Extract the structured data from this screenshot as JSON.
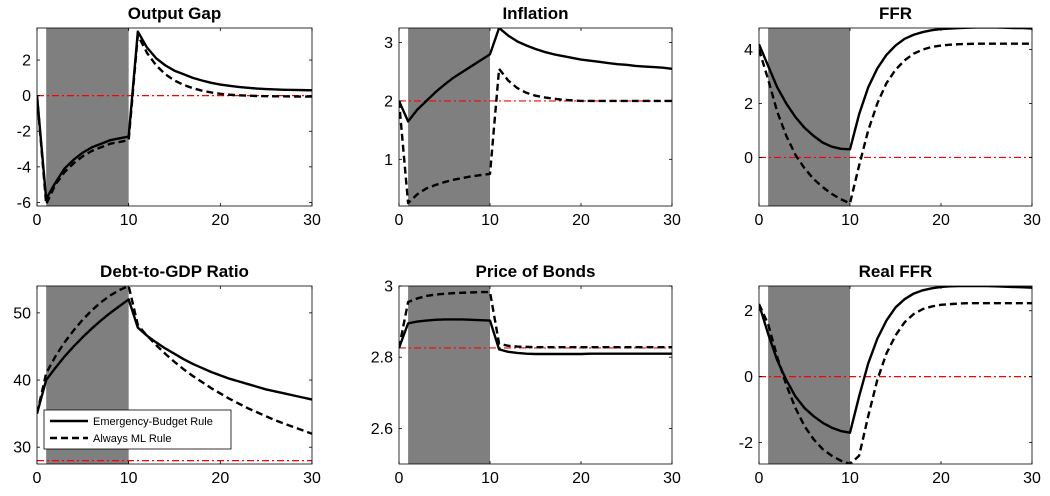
{
  "figure": {
    "colors": {
      "recession_shade": "#7f7f7f",
      "reference_line": "#ff0000",
      "series": "#000000",
      "background": "#ffffff"
    },
    "legend": {
      "panel": "Debt-to-GDP Ratio",
      "entries": [
        {
          "label": "Emergency-Budget Rule",
          "style": "solid"
        },
        {
          "label": "Always ML Rule",
          "style": "dashed"
        }
      ]
    }
  },
  "chart_data": [
    {
      "type": "line",
      "title": "Output Gap",
      "xlim": [
        0,
        30
      ],
      "ylim": [
        -6.2,
        3.8
      ],
      "xticks": [
        0,
        10,
        20,
        30
      ],
      "yticks": [
        -6,
        -4,
        -2,
        0,
        2
      ],
      "shade": [
        1,
        10
      ],
      "reference_line": {
        "y": 0,
        "style": "dash-dot"
      },
      "series": [
        {
          "name": "Emergency-Budget Rule",
          "style": "solid",
          "x": [
            0,
            1,
            2,
            3,
            4,
            5,
            6,
            7,
            8,
            9,
            10,
            11,
            12,
            13,
            14,
            15,
            16,
            17,
            18,
            19,
            20,
            21,
            22,
            23,
            24,
            25,
            26,
            27,
            28,
            29,
            30
          ],
          "y": [
            0,
            -5.8,
            -4.9,
            -4.1,
            -3.6,
            -3.2,
            -2.9,
            -2.7,
            -2.5,
            -2.4,
            -2.3,
            3.6,
            2.7,
            2.1,
            1.7,
            1.4,
            1.2,
            1.0,
            0.85,
            0.72,
            0.62,
            0.55,
            0.49,
            0.44,
            0.4,
            0.37,
            0.35,
            0.33,
            0.32,
            0.31,
            0.3
          ]
        },
        {
          "name": "Always ML Rule",
          "style": "dashed",
          "x": [
            0,
            1,
            2,
            3,
            4,
            5,
            6,
            7,
            8,
            9,
            10,
            11,
            12,
            13,
            14,
            15,
            16,
            17,
            18,
            19,
            20,
            21,
            22,
            23,
            24,
            25,
            26,
            27,
            28,
            29,
            30
          ],
          "y": [
            0,
            -6.1,
            -5.0,
            -4.3,
            -3.8,
            -3.4,
            -3.1,
            -2.9,
            -2.7,
            -2.6,
            -2.5,
            3.4,
            2.4,
            1.7,
            1.2,
            0.85,
            0.6,
            0.42,
            0.28,
            0.18,
            0.1,
            0.05,
            0.02,
            0.0,
            -0.02,
            -0.03,
            -0.04,
            -0.04,
            -0.05,
            -0.05,
            -0.05
          ]
        }
      ]
    },
    {
      "type": "line",
      "title": "Inflation",
      "xlim": [
        0,
        30
      ],
      "ylim": [
        0.2,
        3.25
      ],
      "xticks": [
        0,
        10,
        20,
        30
      ],
      "yticks": [
        1,
        2,
        3
      ],
      "shade": [
        1,
        10
      ],
      "reference_line": {
        "y": 2,
        "style": "dash-dot"
      },
      "series": [
        {
          "name": "Emergency-Budget Rule",
          "style": "solid",
          "x": [
            0,
            1,
            2,
            3,
            4,
            5,
            6,
            7,
            8,
            9,
            10,
            11,
            12,
            13,
            14,
            15,
            16,
            17,
            18,
            19,
            20,
            21,
            22,
            23,
            24,
            25,
            26,
            27,
            28,
            29,
            30
          ],
          "y": [
            2.0,
            1.65,
            1.85,
            2.0,
            2.15,
            2.28,
            2.4,
            2.5,
            2.6,
            2.7,
            2.8,
            3.25,
            3.12,
            3.02,
            2.95,
            2.89,
            2.84,
            2.8,
            2.77,
            2.74,
            2.71,
            2.69,
            2.67,
            2.65,
            2.63,
            2.62,
            2.6,
            2.59,
            2.58,
            2.57,
            2.55
          ]
        },
        {
          "name": "Always ML Rule",
          "style": "dashed",
          "x": [
            0,
            1,
            2,
            3,
            4,
            5,
            6,
            7,
            8,
            9,
            10,
            11,
            12,
            13,
            14,
            15,
            16,
            17,
            18,
            19,
            20,
            21,
            22,
            23,
            24,
            25,
            26,
            27,
            28,
            29,
            30
          ],
          "y": [
            2.0,
            0.25,
            0.4,
            0.5,
            0.56,
            0.61,
            0.65,
            0.68,
            0.71,
            0.73,
            0.75,
            2.55,
            2.35,
            2.22,
            2.14,
            2.09,
            2.06,
            2.04,
            2.02,
            2.01,
            2.0,
            2.0,
            2.0,
            2.0,
            2.0,
            2.0,
            2.0,
            2.0,
            2.0,
            2.0,
            2.0
          ]
        }
      ]
    },
    {
      "type": "line",
      "title": "FFR",
      "xlim": [
        0,
        30
      ],
      "ylim": [
        -1.8,
        4.8
      ],
      "xticks": [
        0,
        10,
        20,
        30
      ],
      "yticks": [
        0,
        2,
        4
      ],
      "shade": [
        1,
        10
      ],
      "reference_line": {
        "y": 0,
        "style": "dash-dot"
      },
      "series": [
        {
          "name": "Emergency-Budget Rule",
          "style": "solid",
          "x": [
            0,
            1,
            2,
            3,
            4,
            5,
            6,
            7,
            8,
            9,
            10,
            11,
            12,
            13,
            14,
            15,
            16,
            17,
            18,
            19,
            20,
            21,
            22,
            23,
            24,
            25,
            26,
            27,
            28,
            29,
            30
          ],
          "y": [
            4.2,
            3.4,
            2.6,
            2.0,
            1.5,
            1.1,
            0.8,
            0.55,
            0.4,
            0.32,
            0.3,
            1.6,
            2.6,
            3.3,
            3.8,
            4.15,
            4.4,
            4.55,
            4.65,
            4.72,
            4.76,
            4.78,
            4.8,
            4.81,
            4.82,
            4.82,
            4.82,
            4.81,
            4.8,
            4.8,
            4.78
          ]
        },
        {
          "name": "Always ML Rule",
          "style": "dashed",
          "x": [
            0,
            1,
            2,
            3,
            4,
            5,
            6,
            7,
            8,
            9,
            10,
            11,
            12,
            13,
            14,
            15,
            16,
            17,
            18,
            19,
            20,
            21,
            22,
            23,
            24,
            25,
            26,
            27,
            28,
            29,
            30
          ],
          "y": [
            4.0,
            2.9,
            1.7,
            0.8,
            0.1,
            -0.4,
            -0.8,
            -1.1,
            -1.35,
            -1.55,
            -1.7,
            -0.3,
            1.0,
            2.0,
            2.75,
            3.25,
            3.6,
            3.85,
            4.0,
            4.1,
            4.15,
            4.18,
            4.2,
            4.21,
            4.22,
            4.22,
            4.22,
            4.22,
            4.22,
            4.22,
            4.22
          ]
        }
      ]
    },
    {
      "type": "line",
      "title": "Debt-to-GDP Ratio",
      "xlim": [
        0,
        30
      ],
      "ylim": [
        27.5,
        54
      ],
      "xticks": [
        0,
        10,
        20,
        30
      ],
      "yticks": [
        30,
        40,
        50
      ],
      "shade": [
        1,
        10
      ],
      "reference_line": {
        "y": 28,
        "style": "dash-dot"
      },
      "series": [
        {
          "name": "Emergency-Budget Rule",
          "style": "solid",
          "x": [
            0,
            1,
            2,
            3,
            4,
            5,
            6,
            7,
            8,
            9,
            10,
            11,
            12,
            13,
            14,
            15,
            16,
            17,
            18,
            19,
            20,
            21,
            22,
            23,
            24,
            25,
            26,
            27,
            28,
            29,
            30
          ],
          "y": [
            35,
            40,
            41.8,
            43.5,
            45,
            46.4,
            47.7,
            48.9,
            50,
            51,
            52,
            47.8,
            46.6,
            45.6,
            44.7,
            43.9,
            43.1,
            42.4,
            41.8,
            41.2,
            40.7,
            40.2,
            39.8,
            39.4,
            39,
            38.6,
            38.3,
            38,
            37.7,
            37.4,
            37.1
          ]
        },
        {
          "name": "Always ML Rule",
          "style": "dashed",
          "x": [
            0,
            1,
            2,
            3,
            4,
            5,
            6,
            7,
            8,
            9,
            10,
            11,
            12,
            13,
            14,
            15,
            16,
            17,
            18,
            19,
            20,
            21,
            22,
            23,
            24,
            25,
            26,
            27,
            28,
            29,
            30
          ],
          "y": [
            35,
            41,
            43.5,
            45.6,
            47.4,
            49,
            50.4,
            51.6,
            52.6,
            53.4,
            54,
            48.2,
            46.6,
            45.2,
            43.9,
            42.7,
            41.6,
            40.6,
            39.7,
            38.8,
            38,
            37.2,
            36.5,
            35.8,
            35.2,
            34.6,
            34,
            33.5,
            33,
            32.5,
            32
          ]
        }
      ]
    },
    {
      "type": "line",
      "title": "Price of Bonds",
      "xlim": [
        0,
        30
      ],
      "ylim": [
        2.5,
        3.0
      ],
      "xticks": [
        0,
        10,
        20,
        30
      ],
      "yticks": [
        2.6,
        2.8,
        3
      ],
      "shade": [
        1,
        10
      ],
      "reference_line": {
        "y": 2.826,
        "style": "dash-dot"
      },
      "series": [
        {
          "name": "Emergency-Budget Rule",
          "style": "solid",
          "x": [
            0,
            1,
            2,
            3,
            4,
            5,
            6,
            7,
            8,
            9,
            10,
            11,
            12,
            13,
            14,
            15,
            16,
            17,
            18,
            19,
            20,
            21,
            22,
            23,
            24,
            25,
            26,
            27,
            28,
            29,
            30
          ],
          "y": [
            2.826,
            2.895,
            2.9,
            2.903,
            2.905,
            2.906,
            2.906,
            2.906,
            2.905,
            2.904,
            2.903,
            2.822,
            2.815,
            2.812,
            2.81,
            2.809,
            2.809,
            2.809,
            2.809,
            2.809,
            2.809,
            2.81,
            2.81,
            2.81,
            2.81,
            2.81,
            2.81,
            2.81,
            2.81,
            2.81,
            2.81
          ]
        },
        {
          "name": "Always ML Rule",
          "style": "dashed",
          "x": [
            0,
            1,
            2,
            3,
            4,
            5,
            6,
            7,
            8,
            9,
            10,
            11,
            12,
            13,
            14,
            15,
            16,
            17,
            18,
            19,
            20,
            21,
            22,
            23,
            24,
            25,
            26,
            27,
            28,
            29,
            30
          ],
          "y": [
            2.826,
            2.955,
            2.965,
            2.972,
            2.976,
            2.978,
            2.98,
            2.981,
            2.982,
            2.983,
            2.983,
            2.838,
            2.832,
            2.83,
            2.829,
            2.828,
            2.828,
            2.828,
            2.828,
            2.828,
            2.828,
            2.828,
            2.828,
            2.828,
            2.828,
            2.828,
            2.828,
            2.828,
            2.828,
            2.828,
            2.828
          ]
        }
      ]
    },
    {
      "type": "line",
      "title": "Real FFR",
      "xlim": [
        0,
        30
      ],
      "ylim": [
        -2.65,
        2.75
      ],
      "xticks": [
        0,
        10,
        20,
        30
      ],
      "yticks": [
        -2,
        0,
        2
      ],
      "shade": [
        1,
        10
      ],
      "reference_line": {
        "y": 0,
        "style": "dash-dot"
      },
      "series": [
        {
          "name": "Emergency-Budget Rule",
          "style": "solid",
          "x": [
            0,
            1,
            2,
            3,
            4,
            5,
            6,
            7,
            8,
            9,
            10,
            11,
            12,
            13,
            14,
            15,
            16,
            17,
            18,
            19,
            20,
            21,
            22,
            23,
            24,
            25,
            26,
            27,
            28,
            29,
            30
          ],
          "y": [
            2.2,
            1.3,
            0.5,
            -0.1,
            -0.6,
            -0.95,
            -1.2,
            -1.4,
            -1.55,
            -1.65,
            -1.7,
            -0.6,
            0.4,
            1.15,
            1.7,
            2.1,
            2.35,
            2.52,
            2.62,
            2.68,
            2.72,
            2.74,
            2.75,
            2.75,
            2.75,
            2.75,
            2.74,
            2.73,
            2.72,
            2.71,
            2.7
          ]
        },
        {
          "name": "Always ML Rule",
          "style": "dashed",
          "x": [
            0,
            1,
            2,
            3,
            4,
            5,
            6,
            7,
            8,
            9,
            10,
            11,
            12,
            13,
            14,
            15,
            16,
            17,
            18,
            19,
            20,
            21,
            22,
            23,
            24,
            25,
            26,
            27,
            28,
            29,
            30
          ],
          "y": [
            2.2,
            1.6,
            0.6,
            -0.25,
            -0.95,
            -1.5,
            -1.9,
            -2.2,
            -2.4,
            -2.55,
            -2.65,
            -2.4,
            -1.2,
            -0.1,
            0.7,
            1.25,
            1.65,
            1.9,
            2.05,
            2.13,
            2.18,
            2.2,
            2.22,
            2.23,
            2.23,
            2.23,
            2.23,
            2.23,
            2.23,
            2.23,
            2.23
          ]
        }
      ]
    }
  ]
}
